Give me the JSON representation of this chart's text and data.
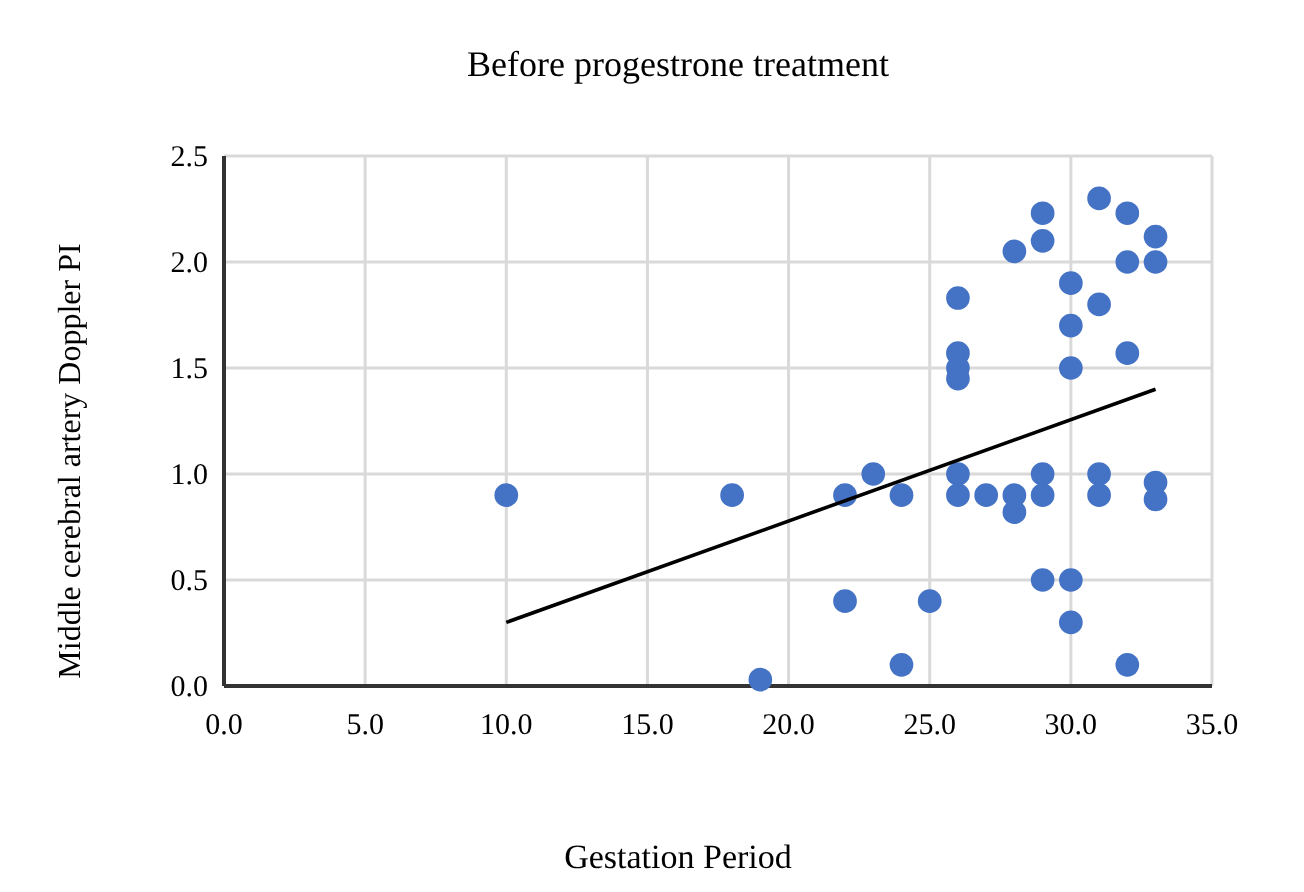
{
  "chart_data": {
    "type": "scatter",
    "title": "Before  progestrone treatment",
    "xlabel": "Gestation Period",
    "ylabel": "Middle cerebral artery Doppler PI",
    "xlim": [
      0,
      35
    ],
    "xticks": [
      {
        "value": 0,
        "label": "0.0"
      },
      {
        "value": 5,
        "label": "5.0"
      },
      {
        "value": 10,
        "label": "10.0"
      },
      {
        "value": 15,
        "label": "15.0"
      },
      {
        "value": 20,
        "label": "20.0"
      },
      {
        "value": 25,
        "label": "25.0"
      },
      {
        "value": 30,
        "label": "30.0"
      },
      {
        "value": 35,
        "label": "35.0"
      }
    ],
    "ylim": [
      0,
      2.5
    ],
    "yticks": [
      {
        "value": 0,
        "label": "0.0"
      },
      {
        "value": 0.5,
        "label": "0.5"
      },
      {
        "value": 1,
        "label": "1.0"
      },
      {
        "value": 1.5,
        "label": "1.5"
      },
      {
        "value": 2,
        "label": "2.0"
      },
      {
        "value": 2.5,
        "label": "2.5"
      }
    ],
    "grid": true,
    "marker": "circle",
    "series": [
      {
        "color": "#4472c4",
        "x": [
          10,
          18,
          19,
          22,
          22,
          23,
          24,
          24,
          25,
          26,
          26,
          26,
          26,
          26,
          26,
          27,
          28,
          28,
          28,
          29,
          29,
          29,
          29,
          29,
          30,
          30,
          30,
          30,
          30,
          31,
          31,
          31,
          31,
          32,
          32,
          32,
          32,
          33,
          33,
          33,
          33
        ],
        "values": [
          0.9,
          0.9,
          0.03,
          0.9,
          0.4,
          1.0,
          0.9,
          0.1,
          0.4,
          1.83,
          1.57,
          1.5,
          1.45,
          1.0,
          0.9,
          0.9,
          0.9,
          0.82,
          2.05,
          2.23,
          2.1,
          1.0,
          0.9,
          0.5,
          1.9,
          1.7,
          1.5,
          0.5,
          0.3,
          2.3,
          1.8,
          1.0,
          0.9,
          2.23,
          2.0,
          1.57,
          0.1,
          2.12,
          2.0,
          0.96,
          0.88
        ]
      },
      {
        "type": "line",
        "color": "#000000",
        "marker": "none",
        "x": [
          10,
          33
        ],
        "values": [
          0.3,
          1.4
        ]
      }
    ]
  }
}
